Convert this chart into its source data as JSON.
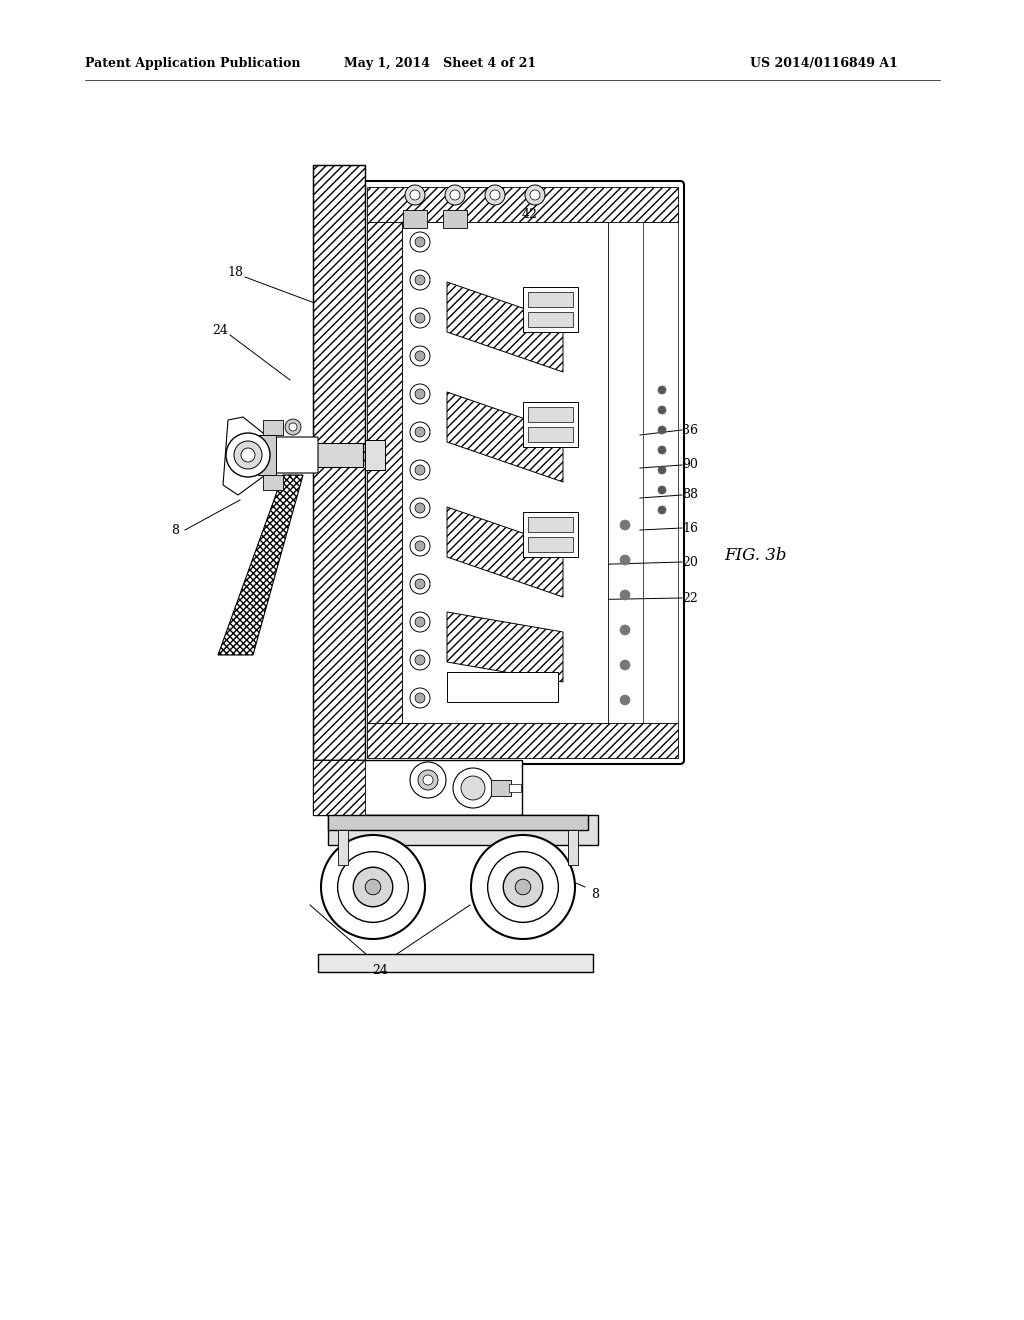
{
  "background_color": "#ffffff",
  "header_left": "Patent Application Publication",
  "header_mid": "May 1, 2014   Sheet 4 of 21",
  "header_right": "US 2014/0116849 A1",
  "fig_label": "FIG. 3b",
  "ann_fontsize": 9,
  "header_fontsize": 9
}
